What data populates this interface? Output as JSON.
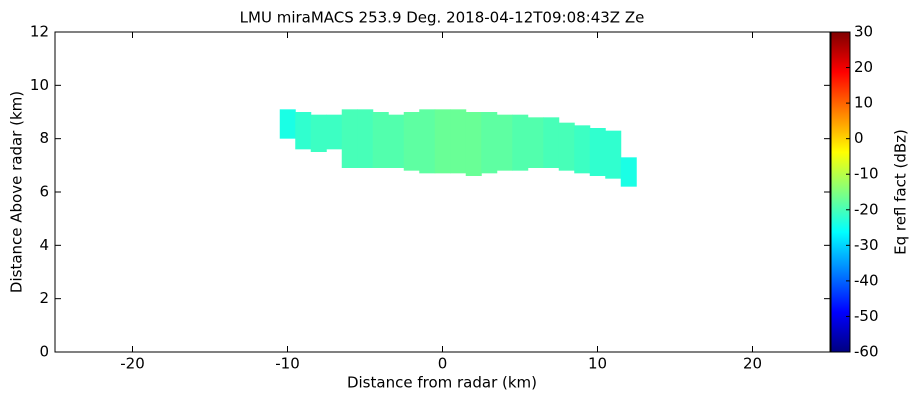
{
  "chart_data": {
    "type": "heatmap",
    "title": "LMU miraMACS 253.9 Deg. 2018-04-12T09:08:43Z  Ze",
    "xlabel": "Distance from radar (km)",
    "ylabel": "Distance Above radar  (km)",
    "colorbar_label": "Eq refl fact (dBz)",
    "xlim": [
      -25,
      25
    ],
    "xticks": [
      -20,
      -10,
      0,
      10,
      20
    ],
    "ylim": [
      0,
      12
    ],
    "yticks": [
      0,
      2,
      4,
      6,
      8,
      10,
      12
    ],
    "clim": [
      -60,
      30
    ],
    "cticks": [
      -60,
      -50,
      -40,
      -30,
      -20,
      -10,
      0,
      10,
      20,
      30
    ],
    "colormap": "jet",
    "x": [
      -10,
      -9,
      -8,
      -7,
      -6,
      -5,
      -4,
      -3,
      -2,
      -1,
      0,
      1,
      2,
      3,
      4,
      5,
      6,
      7,
      8,
      9,
      10,
      11,
      12
    ],
    "cloud_top": [
      9.1,
      9.0,
      8.9,
      8.9,
      9.1,
      9.1,
      9.0,
      8.9,
      9.0,
      9.1,
      9.1,
      9.1,
      9.0,
      9.0,
      8.9,
      8.9,
      8.8,
      8.8,
      8.6,
      8.5,
      8.4,
      8.3,
      7.3
    ],
    "cloud_base": [
      8.0,
      7.6,
      7.5,
      7.6,
      6.9,
      6.9,
      6.9,
      6.9,
      6.8,
      6.7,
      6.7,
      6.7,
      6.6,
      6.7,
      6.8,
      6.8,
      6.9,
      6.9,
      6.8,
      6.7,
      6.6,
      6.5,
      6.2
    ],
    "values": [
      -24,
      -22,
      -21,
      -21,
      -20,
      -20,
      -19,
      -19,
      -18,
      -18,
      -17,
      -17,
      -17,
      -18,
      -18,
      -19,
      -19,
      -20,
      -20,
      -21,
      -22,
      -22,
      -24
    ]
  }
}
